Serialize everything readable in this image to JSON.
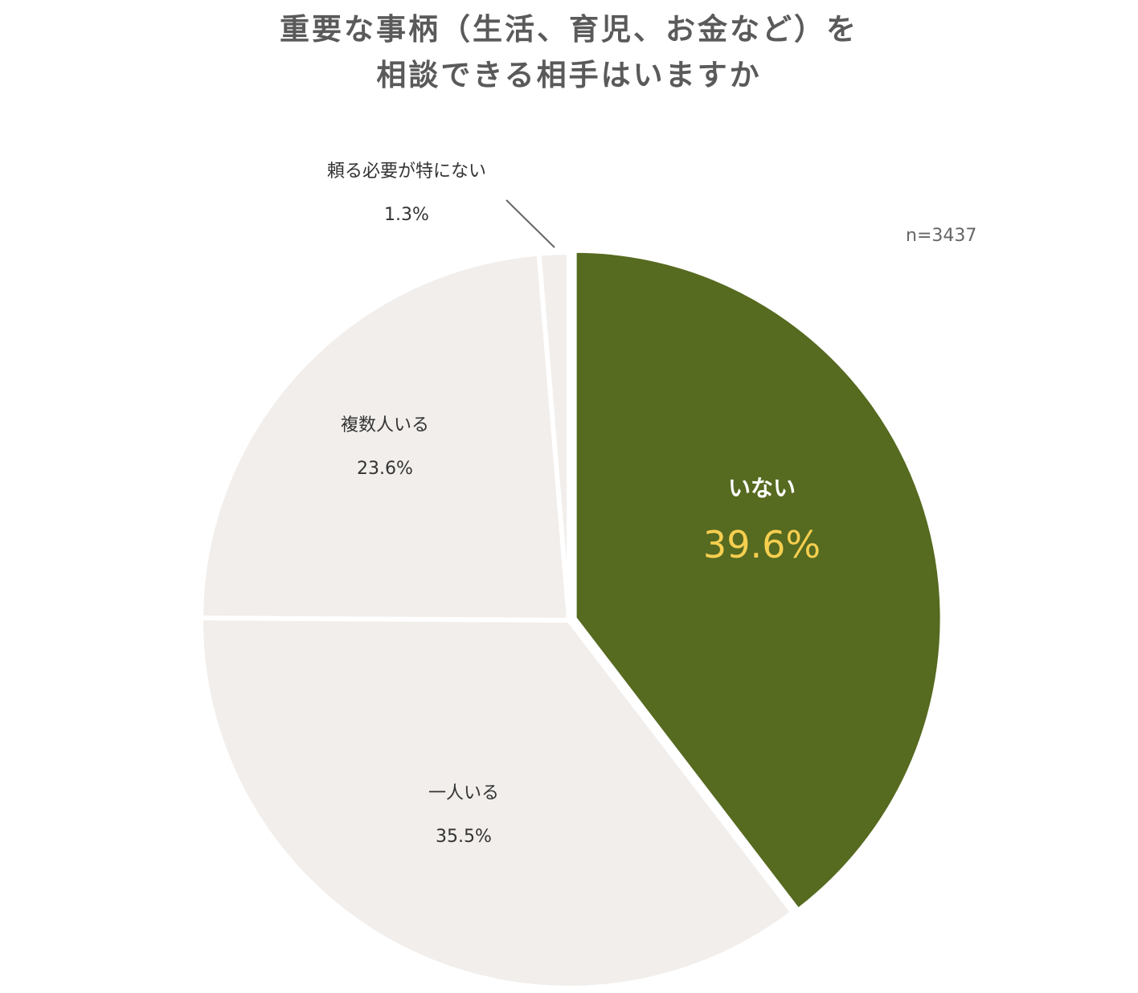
{
  "title": {
    "line1": "重要な事柄（生活、育児、お金など）を",
    "line2": "相談できる相手はいますか"
  },
  "sample_size": "n=3437",
  "colors": {
    "highlight": "#566a20",
    "neutral": "#f1eeeb",
    "highlight_value": "#f7cf4f",
    "leader_line": "#666666"
  },
  "chart_data": {
    "type": "pie",
    "title": "重要な事柄（生活、育児、お金など）を相談できる相手はいますか",
    "n": "n=3437",
    "slices": [
      {
        "label": "いない",
        "value": 39.6,
        "value_label": "39.6%",
        "highlight": true
      },
      {
        "label": "一人いる",
        "value": 35.5,
        "value_label": "35.5%",
        "highlight": false
      },
      {
        "label": "複数人いる",
        "value": 23.6,
        "value_label": "23.6%",
        "highlight": false
      },
      {
        "label": "頼る必要が特にない",
        "value": 1.3,
        "value_label": "1.3%",
        "highlight": false
      }
    ]
  }
}
